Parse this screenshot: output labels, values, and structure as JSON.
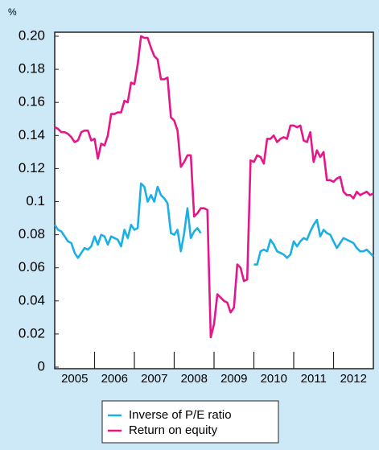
{
  "chart_data": {
    "type": "line",
    "y_unit": "%",
    "categories": [
      "2005",
      "2006",
      "2007",
      "2008",
      "2009",
      "2010",
      "2011",
      "2012"
    ],
    "x": [
      2005,
      2005.083,
      2005.167,
      2005.25,
      2005.333,
      2005.417,
      2005.5,
      2005.583,
      2005.667,
      2005.75,
      2005.833,
      2005.917,
      2006,
      2006.083,
      2006.167,
      2006.25,
      2006.333,
      2006.417,
      2006.5,
      2006.583,
      2006.667,
      2006.75,
      2006.833,
      2006.917,
      2007,
      2007.083,
      2007.167,
      2007.25,
      2007.333,
      2007.417,
      2007.5,
      2007.583,
      2007.667,
      2007.75,
      2007.833,
      2007.917,
      2008,
      2008.083,
      2008.167,
      2008.25,
      2008.333,
      2008.417,
      2008.5,
      2008.583,
      2008.667,
      2008.75,
      2008.833,
      2008.917,
      2009,
      2009.083,
      2009.167,
      2009.25,
      2009.333,
      2009.417,
      2009.5,
      2009.583,
      2009.667,
      2009.75,
      2009.833,
      2009.917,
      2010,
      2010.083,
      2010.167,
      2010.25,
      2010.333,
      2010.417,
      2010.5,
      2010.583,
      2010.667,
      2010.75,
      2010.833,
      2010.917,
      2011,
      2011.083,
      2011.167,
      2011.25,
      2011.333,
      2011.417,
      2011.5,
      2011.583,
      2011.667,
      2011.75,
      2011.833,
      2011.917,
      2012,
      2012.083,
      2012.167,
      2012.25,
      2012.333,
      2012.417,
      2012.5,
      2012.583,
      2012.667,
      2012.75,
      2012.833,
      2012.917,
      2013
    ],
    "series": [
      {
        "name": "Inverse of P/E ratio",
        "color": "#1ab0e6",
        "values": [
          0.086,
          0.083,
          0.082,
          0.079,
          0.076,
          0.075,
          0.069,
          0.066,
          0.069,
          0.072,
          0.071,
          0.073,
          0.079,
          0.074,
          0.08,
          0.079,
          0.074,
          0.079,
          0.078,
          0.077,
          0.073,
          0.083,
          0.078,
          0.086,
          0.083,
          0.084,
          0.111,
          0.109,
          0.1,
          0.104,
          0.1,
          0.109,
          0.104,
          0.102,
          0.099,
          0.081,
          0.08,
          0.083,
          0.07,
          0.081,
          0.096,
          0.078,
          0.082,
          0.084,
          0.081,
          null,
          null,
          null,
          null,
          null,
          null,
          null,
          null,
          null,
          null,
          null,
          null,
          null,
          null,
          null,
          0.062,
          0.062,
          0.07,
          0.071,
          0.07,
          0.077,
          0.074,
          0.07,
          0.069,
          0.068,
          0.066,
          0.068,
          0.076,
          0.073,
          0.076,
          0.078,
          0.077,
          0.082,
          0.086,
          0.089,
          0.079,
          0.083,
          0.081,
          0.08,
          0.076,
          0.072,
          0.075,
          0.078,
          0.077,
          0.076,
          0.075,
          0.072,
          0.07,
          0.07,
          0.071,
          0.069,
          0.067
        ]
      },
      {
        "name": "Return on equity",
        "color": "#e5168a",
        "values": [
          0.145,
          0.144,
          0.142,
          0.142,
          0.141,
          0.139,
          0.136,
          0.137,
          0.142,
          0.143,
          0.143,
          0.137,
          0.138,
          0.126,
          0.135,
          0.134,
          0.14,
          0.153,
          0.153,
          0.154,
          0.154,
          0.161,
          0.16,
          0.172,
          0.171,
          0.183,
          0.2,
          0.199,
          0.199,
          0.193,
          0.188,
          0.186,
          0.174,
          0.174,
          0.175,
          0.151,
          0.149,
          0.143,
          0.121,
          0.124,
          0.128,
          0.128,
          0.091,
          0.093,
          0.096,
          0.096,
          0.095,
          0.018,
          0.026,
          0.044,
          0.042,
          0.04,
          0.039,
          0.033,
          0.036,
          0.062,
          0.06,
          0.052,
          0.053,
          0.125,
          0.124,
          0.128,
          0.127,
          0.123,
          0.138,
          0.138,
          0.14,
          0.136,
          0.138,
          0.139,
          0.138,
          0.146,
          0.146,
          0.145,
          0.146,
          0.137,
          0.136,
          0.142,
          0.124,
          0.131,
          0.127,
          0.13,
          0.113,
          0.113,
          0.112,
          0.114,
          0.115,
          0.106,
          0.104,
          0.104,
          0.102,
          0.106,
          0.104,
          0.105,
          0.106,
          0.104,
          0.105
        ]
      }
    ],
    "xlim": [
      2005,
      2013
    ],
    "ylim": [
      0,
      0.2
    ],
    "yticks": [
      {
        "value": 0.2,
        "label": "0.20"
      },
      0.18,
      0.16,
      0.14,
      0.12,
      0.1,
      0.08,
      0.06,
      0.04,
      0.02,
      0
    ],
    "legend": "bottom"
  }
}
